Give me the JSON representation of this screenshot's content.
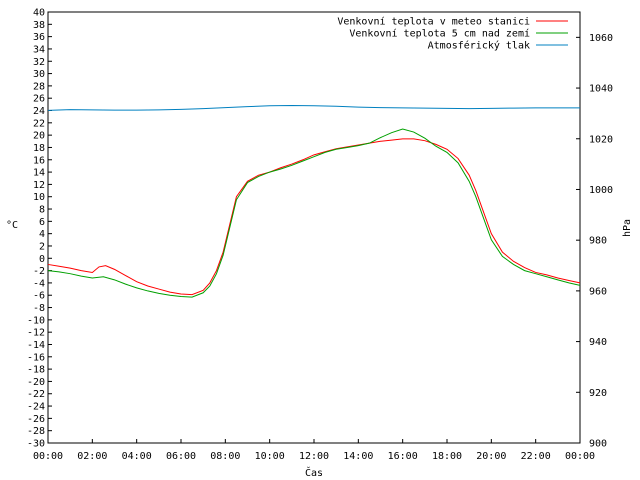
{
  "chart_data": {
    "type": "line",
    "xlabel": "Čas",
    "ylabel_left": "°C",
    "ylabel_right": "hPa",
    "xlim": [
      0,
      24
    ],
    "ylim_left": [
      -30,
      40
    ],
    "ylim_right": [
      900,
      1070
    ],
    "grid": false,
    "legend_position": "top-right",
    "x_ticks": [
      "00:00",
      "02:00",
      "04:00",
      "06:00",
      "08:00",
      "10:00",
      "12:00",
      "14:00",
      "16:00",
      "18:00",
      "20:00",
      "22:00",
      "00:00"
    ],
    "y_left_ticks": [
      -30,
      -28,
      -26,
      -24,
      -22,
      -20,
      -18,
      -16,
      -14,
      -12,
      -10,
      -8,
      -6,
      -4,
      -2,
      0,
      2,
      4,
      6,
      8,
      10,
      12,
      14,
      16,
      18,
      20,
      22,
      24,
      26,
      28,
      30,
      32,
      34,
      36,
      38,
      40
    ],
    "y_right_ticks": [
      900,
      920,
      940,
      960,
      980,
      1000,
      1020,
      1040,
      1060
    ],
    "series": [
      {
        "name": "Venkovní teplota v meteo stanici",
        "color": "#ff0000",
        "axis": "left",
        "x": [
          0,
          0.5,
          1,
          1.5,
          2,
          2.3,
          2.6,
          3,
          3.5,
          4,
          4.5,
          5,
          5.5,
          6,
          6.5,
          7,
          7.3,
          7.6,
          7.9,
          8.2,
          8.5,
          9,
          9.5,
          10,
          10.5,
          11,
          11.5,
          12,
          12.5,
          13,
          13.5,
          14,
          14.5,
          15,
          15.5,
          16,
          16.5,
          17,
          17.5,
          18,
          18.5,
          19,
          19.3,
          19.6,
          20,
          20.5,
          21,
          21.5,
          22,
          22.5,
          23,
          23.5,
          24
        ],
        "y": [
          -1,
          -1.3,
          -1.6,
          -2,
          -2.3,
          -1.4,
          -1.2,
          -1.8,
          -2.8,
          -3.8,
          -4.5,
          -5,
          -5.5,
          -5.8,
          -5.9,
          -5.2,
          -4,
          -2,
          1,
          5.5,
          10,
          12.5,
          13.5,
          14,
          14.7,
          15.3,
          16,
          16.8,
          17.3,
          17.8,
          18.1,
          18.4,
          18.7,
          19,
          19.2,
          19.4,
          19.4,
          19.1,
          18.5,
          17.7,
          16.2,
          13.5,
          11,
          8,
          4,
          1,
          -0.5,
          -1.5,
          -2.3,
          -2.7,
          -3.2,
          -3.6,
          -4
        ]
      },
      {
        "name": "Venkovní teplota 5 cm nad zemí",
        "color": "#00a000",
        "axis": "left",
        "x": [
          0,
          0.5,
          1,
          1.5,
          2,
          2.5,
          3,
          3.5,
          4,
          4.5,
          5,
          5.5,
          6,
          6.5,
          7,
          7.3,
          7.6,
          7.9,
          8.2,
          8.5,
          9,
          9.5,
          10,
          10.5,
          11,
          11.5,
          12,
          12.5,
          13,
          13.5,
          14,
          14.5,
          15,
          15.5,
          16,
          16.5,
          17,
          17.5,
          18,
          18.5,
          19,
          19.3,
          19.6,
          20,
          20.5,
          21,
          21.5,
          22,
          22.5,
          23,
          23.5,
          24
        ],
        "y": [
          -2,
          -2.2,
          -2.5,
          -2.9,
          -3.2,
          -3,
          -3.5,
          -4.2,
          -4.8,
          -5.3,
          -5.7,
          -6,
          -6.2,
          -6.3,
          -5.6,
          -4.5,
          -2.5,
          0.5,
          5,
          9.5,
          12.3,
          13.3,
          14,
          14.5,
          15.1,
          15.8,
          16.5,
          17.2,
          17.7,
          18,
          18.3,
          18.7,
          19.6,
          20.4,
          21,
          20.5,
          19.5,
          18.2,
          17.2,
          15.5,
          12.5,
          10,
          7,
          3,
          0.3,
          -1,
          -2,
          -2.5,
          -3,
          -3.5,
          -4,
          -4.4
        ]
      },
      {
        "name": "Atmosférický tlak",
        "color": "#0080c0",
        "axis": "right",
        "x": [
          0,
          1,
          2,
          3,
          4,
          5,
          6,
          7,
          8,
          9,
          10,
          11,
          12,
          13,
          14,
          15,
          16,
          17,
          18,
          19,
          20,
          21,
          22,
          23,
          24
        ],
        "y": [
          1031.2,
          1031.5,
          1031.4,
          1031.3,
          1031.3,
          1031.4,
          1031.6,
          1031.9,
          1032.3,
          1032.7,
          1033,
          1033.1,
          1033,
          1032.8,
          1032.5,
          1032.3,
          1032.2,
          1032.1,
          1032,
          1031.9,
          1032,
          1032.1,
          1032.2,
          1032.2,
          1032.2
        ]
      }
    ]
  }
}
